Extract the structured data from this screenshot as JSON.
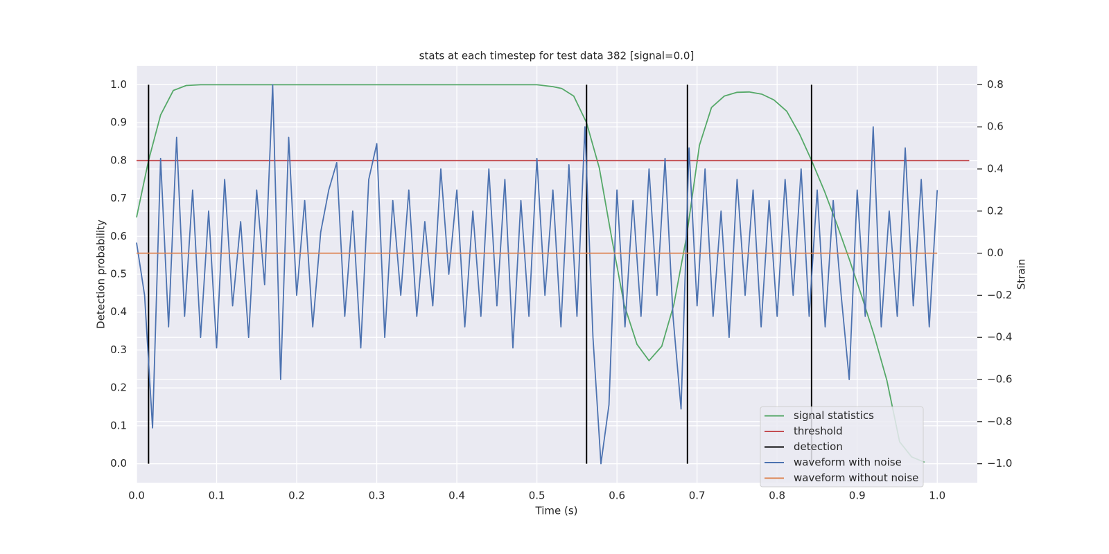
{
  "chart_data": {
    "type": "line",
    "title": "stats at each timestep for test data 382 [signal=0.0]",
    "xlabel": "Time (s)",
    "ylabel": "Detection probability",
    "y2label": "Strain",
    "xlim": [
      0,
      1.05
    ],
    "ylim": [
      -0.05,
      1.05
    ],
    "y2lim": [
      -1.09,
      0.89
    ],
    "xticks": [
      {
        "value": 0,
        "label": "0.0"
      },
      {
        "value": 0.1,
        "label": "0.1"
      },
      {
        "value": 0.2,
        "label": "0.2"
      },
      {
        "value": 0.3,
        "label": "0.3"
      },
      {
        "value": 0.4,
        "label": "0.4"
      },
      {
        "value": 0.5,
        "label": "0.5"
      },
      {
        "value": 0.6,
        "label": "0.6"
      },
      {
        "value": 0.7,
        "label": "0.7"
      },
      {
        "value": 0.8,
        "label": "0.8"
      },
      {
        "value": 0.9,
        "label": "0.9"
      },
      {
        "value": 1,
        "label": "1.0"
      }
    ],
    "yticks": [
      {
        "value": 0,
        "label": "0.0"
      },
      {
        "value": 0.1,
        "label": "0.1"
      },
      {
        "value": 0.2,
        "label": "0.2"
      },
      {
        "value": 0.3,
        "label": "0.3"
      },
      {
        "value": 0.4,
        "label": "0.4"
      },
      {
        "value": 0.5,
        "label": "0.5"
      },
      {
        "value": 0.6,
        "label": "0.6"
      },
      {
        "value": 0.7,
        "label": "0.7"
      },
      {
        "value": 0.8,
        "label": "0.8"
      },
      {
        "value": 0.9,
        "label": "0.9"
      },
      {
        "value": 1,
        "label": "1.0"
      }
    ],
    "y2ticks": [
      {
        "value": 0.8,
        "label": "0.8"
      },
      {
        "value": 0.6,
        "label": "0.6"
      },
      {
        "value": 0.4,
        "label": "0.4"
      },
      {
        "value": 0.2,
        "label": "0.2"
      },
      {
        "value": 0,
        "label": "0.0"
      },
      {
        "value": -0.2,
        "label": "−0.2"
      },
      {
        "value": -0.4,
        "label": "−0.4"
      },
      {
        "value": -0.6,
        "label": "−0.6"
      },
      {
        "value": -0.8,
        "label": "−0.8"
      },
      {
        "value": -1,
        "label": "−1.0"
      }
    ],
    "grid": true,
    "legend": "lower right",
    "series": [
      {
        "name": "signal statistics",
        "color": "#55a868",
        "x": [
          0,
          0.015,
          0.03,
          0.046,
          0.062,
          0.08,
          0.1,
          0.2,
          0.3,
          0.4,
          0.5,
          0.52,
          0.531,
          0.546,
          0.562,
          0.578,
          0.593,
          0.609,
          0.625,
          0.64,
          0.656,
          0.671,
          0.687,
          0.703,
          0.718,
          0.734,
          0.75,
          0.765,
          0.781,
          0.796,
          0.812,
          0.828,
          0.843,
          0.859,
          0.875,
          0.89,
          0.906,
          0.921,
          0.937,
          0.953,
          0.968,
          0.984
        ],
        "values": [
          0.65,
          0.8,
          0.92,
          0.985,
          0.998,
          1.0,
          1.0,
          1.0,
          1.0,
          1.0,
          1.0,
          0.995,
          0.99,
          0.97,
          0.9,
          0.78,
          0.6,
          0.42,
          0.315,
          0.272,
          0.31,
          0.42,
          0.6,
          0.84,
          0.94,
          0.97,
          0.98,
          0.981,
          0.975,
          0.96,
          0.93,
          0.87,
          0.8,
          0.72,
          0.63,
          0.54,
          0.44,
          0.34,
          0.22,
          0.058,
          0.018,
          0.004
        ]
      },
      {
        "name": "threshold",
        "color": "#c44e52",
        "x": [
          0,
          1.04
        ],
        "values": [
          0.8,
          0.8
        ]
      },
      {
        "name": "detection",
        "color": "#000000",
        "vlines": true,
        "x": [
          0.015,
          0.562,
          0.688,
          0.843
        ],
        "ymin": 0,
        "ymax": 1
      },
      {
        "name": "waveform with noise",
        "color": "#4c72b0",
        "axis": "y2",
        "x": [
          0,
          0.01,
          0.02,
          0.03,
          0.04,
          0.05,
          0.06,
          0.07,
          0.08,
          0.09,
          0.1,
          0.11,
          0.12,
          0.13,
          0.14,
          0.15,
          0.16,
          0.17,
          0.18,
          0.19,
          0.2,
          0.21,
          0.22,
          0.23,
          0.24,
          0.25,
          0.26,
          0.27,
          0.28,
          0.29,
          0.3,
          0.31,
          0.32,
          0.33,
          0.34,
          0.35,
          0.36,
          0.37,
          0.38,
          0.39,
          0.4,
          0.41,
          0.42,
          0.43,
          0.44,
          0.45,
          0.46,
          0.47,
          0.48,
          0.49,
          0.5,
          0.51,
          0.52,
          0.53,
          0.54,
          0.55,
          0.56,
          0.57,
          0.58,
          0.59,
          0.6,
          0.61,
          0.62,
          0.63,
          0.64,
          0.65,
          0.66,
          0.67,
          0.68,
          0.69,
          0.7,
          0.71,
          0.72,
          0.73,
          0.74,
          0.75,
          0.76,
          0.77,
          0.78,
          0.79,
          0.8,
          0.81,
          0.82,
          0.83,
          0.84,
          0.85,
          0.86,
          0.87,
          0.88,
          0.89,
          0.9,
          0.91,
          0.92,
          0.93,
          0.94,
          0.95,
          0.96,
          0.97,
          0.98,
          0.99,
          1.0
        ],
        "values": [
          0.05,
          -0.2,
          -0.83,
          0.45,
          -0.35,
          0.55,
          -0.3,
          0.3,
          -0.4,
          0.2,
          -0.45,
          0.35,
          -0.25,
          0.15,
          -0.4,
          0.3,
          -0.15,
          0.8,
          -0.6,
          0.55,
          -0.2,
          0.25,
          -0.35,
          0.1,
          0.3,
          0.43,
          -0.3,
          0.2,
          -0.45,
          0.35,
          0.52,
          -0.4,
          0.25,
          -0.2,
          0.3,
          -0.3,
          0.15,
          -0.25,
          0.4,
          -0.1,
          0.3,
          -0.35,
          0.2,
          -0.3,
          0.4,
          -0.25,
          0.35,
          -0.45,
          0.25,
          -0.3,
          0.45,
          -0.2,
          0.3,
          -0.35,
          0.42,
          -0.3,
          0.6,
          -0.4,
          -1.0,
          -0.72,
          0.3,
          -0.35,
          0.25,
          -0.3,
          0.4,
          -0.2,
          0.45,
          -0.3,
          -0.74,
          0.5,
          -0.25,
          0.4,
          -0.3,
          0.2,
          -0.4,
          0.35,
          -0.2,
          0.3,
          -0.35,
          0.25,
          -0.3,
          0.35,
          -0.2,
          0.4,
          -0.3,
          0.3,
          -0.35,
          0.25,
          -0.2,
          -0.6,
          0.3,
          -0.3,
          0.6,
          -0.35,
          0.2,
          -0.3,
          0.5,
          -0.25,
          0.35,
          -0.35,
          0.3
        ]
      },
      {
        "name": "waveform without noise",
        "color": "#dd8452",
        "axis": "y2",
        "x": [
          0,
          1.0
        ],
        "values": [
          0,
          0
        ]
      }
    ]
  }
}
